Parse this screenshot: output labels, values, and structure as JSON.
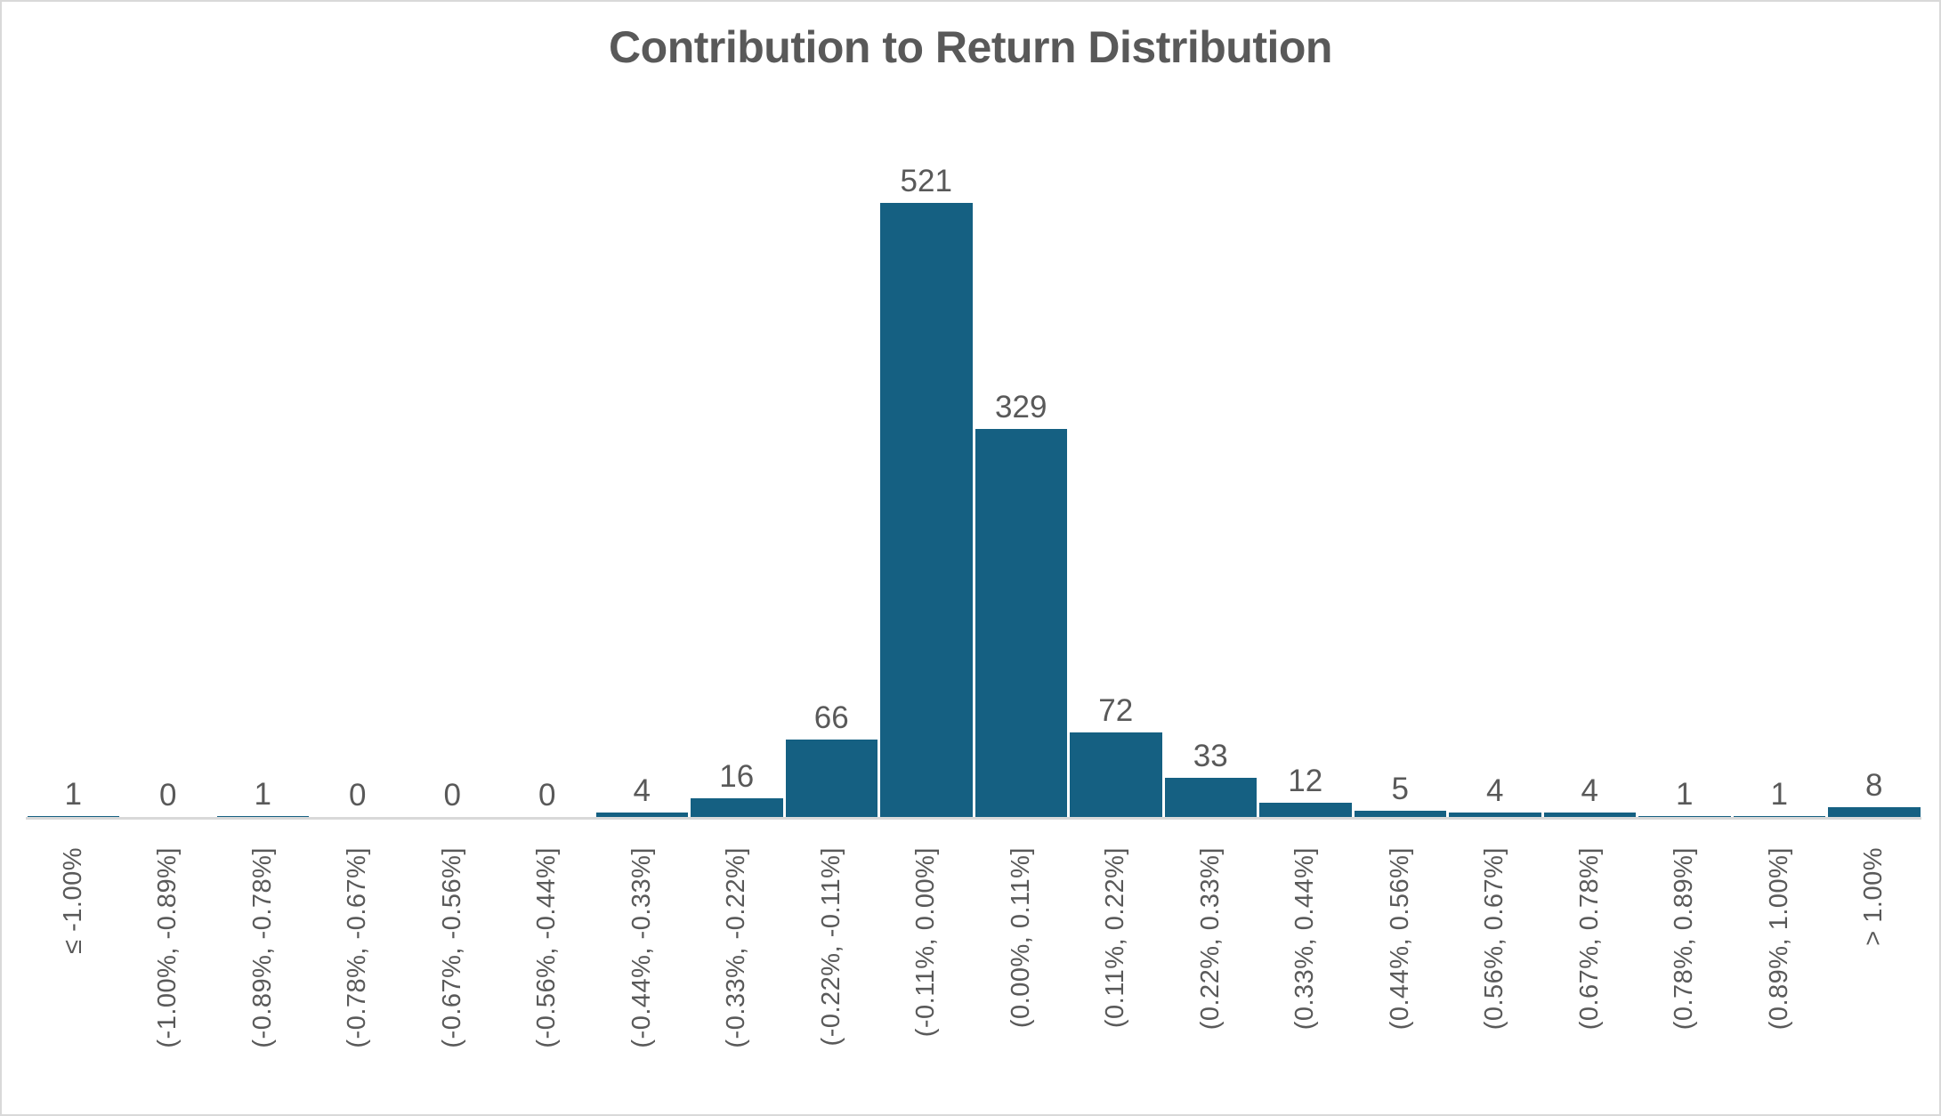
{
  "chart_data": {
    "type": "bar",
    "title": "Contribution to Return Distribution",
    "categories": [
      "≤ -1.00%",
      "(-1.00%, -0.89%]",
      "(-0.89%, -0.78%]",
      "(-0.78%, -0.67%]",
      "(-0.67%, -0.56%]",
      "(-0.56%, -0.44%]",
      "(-0.44%, -0.33%]",
      "(-0.33%, -0.22%]",
      "(-0.22%, -0.11%]",
      "(-0.11%, 0.00%]",
      "(0.00%, 0.11%]",
      "(0.11%, 0.22%]",
      "(0.22%, 0.33%]",
      "(0.33%, 0.44%]",
      "(0.44%, 0.56%]",
      "(0.56%, 0.67%]",
      "(0.67%, 0.78%]",
      "(0.78%, 0.89%]",
      "(0.89%, 1.00%]",
      "> 1.00%"
    ],
    "values": [
      1,
      0,
      1,
      0,
      0,
      0,
      4,
      16,
      66,
      521,
      329,
      72,
      33,
      12,
      5,
      4,
      4,
      1,
      1,
      8
    ],
    "xlabel": "",
    "ylabel": "",
    "ylim": [
      0,
      560
    ],
    "grid": false,
    "legend": false,
    "data_labels": true,
    "x_tick_rotation_deg": 90,
    "bar_color": "#156082",
    "text_color": "#595959",
    "axis_line_color": "#d9d9d9",
    "background_color": "#ffffff"
  }
}
